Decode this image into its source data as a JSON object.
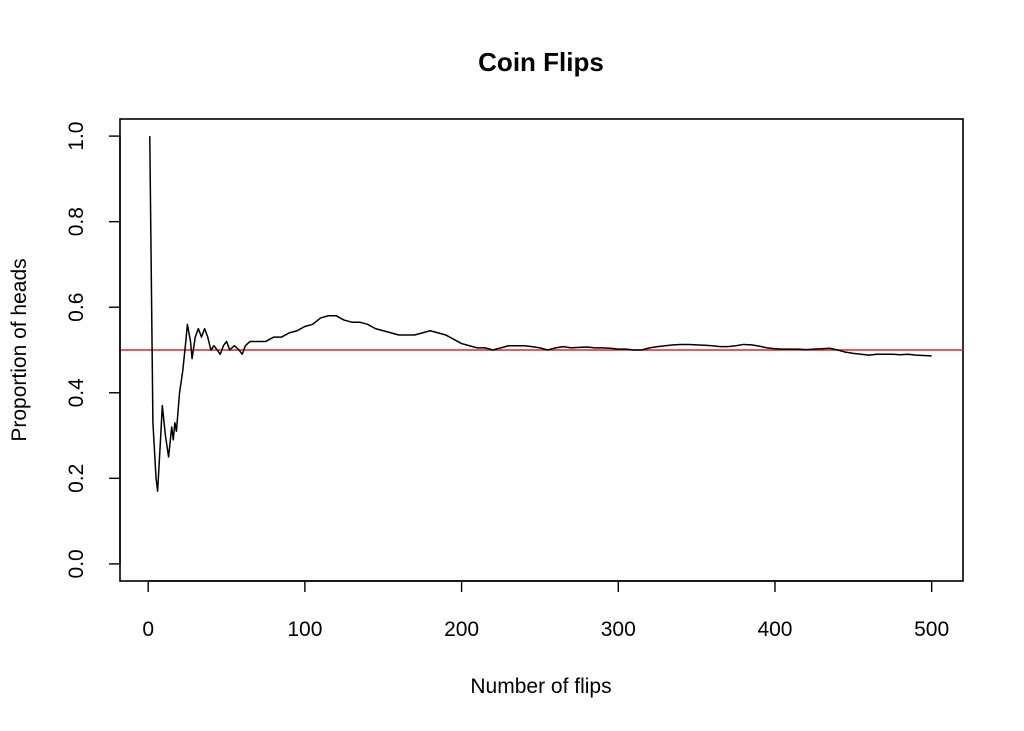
{
  "chart_data": {
    "type": "line",
    "title": "Coin Flips",
    "xlabel": "Number of flips",
    "ylabel": "Proportion of heads",
    "xlim": [
      -18,
      520
    ],
    "ylim": [
      -0.04,
      1.04
    ],
    "x_ticks": [
      "0",
      "100",
      "200",
      "300",
      "400",
      "500"
    ],
    "y_ticks": [
      "0.0",
      "0.2",
      "0.4",
      "0.6",
      "0.8",
      "1.0"
    ],
    "grid": false,
    "legend": "none",
    "series": [
      {
        "color": "#000000",
        "points": [
          [
            1,
            1.0
          ],
          [
            3,
            0.33
          ],
          [
            5,
            0.2
          ],
          [
            6,
            0.17
          ],
          [
            8,
            0.3
          ],
          [
            9,
            0.37
          ],
          [
            11,
            0.3
          ],
          [
            13,
            0.25
          ],
          [
            15,
            0.32
          ],
          [
            16,
            0.29
          ],
          [
            17,
            0.33
          ],
          [
            18,
            0.31
          ],
          [
            20,
            0.4
          ],
          [
            22,
            0.45
          ],
          [
            24,
            0.52
          ],
          [
            25,
            0.56
          ],
          [
            27,
            0.52
          ],
          [
            28,
            0.48
          ],
          [
            30,
            0.53
          ],
          [
            32,
            0.55
          ],
          [
            34,
            0.53
          ],
          [
            36,
            0.55
          ],
          [
            38,
            0.53
          ],
          [
            40,
            0.5
          ],
          [
            42,
            0.51
          ],
          [
            44,
            0.5
          ],
          [
            46,
            0.49
          ],
          [
            48,
            0.51
          ],
          [
            50,
            0.52
          ],
          [
            52,
            0.5
          ],
          [
            55,
            0.51
          ],
          [
            58,
            0.5
          ],
          [
            60,
            0.49
          ],
          [
            62,
            0.51
          ],
          [
            65,
            0.52
          ],
          [
            70,
            0.52
          ],
          [
            75,
            0.52
          ],
          [
            80,
            0.53
          ],
          [
            85,
            0.53
          ],
          [
            90,
            0.54
          ],
          [
            95,
            0.545
          ],
          [
            100,
            0.555
          ],
          [
            105,
            0.56
          ],
          [
            110,
            0.575
          ],
          [
            115,
            0.58
          ],
          [
            120,
            0.58
          ],
          [
            125,
            0.57
          ],
          [
            130,
            0.565
          ],
          [
            135,
            0.565
          ],
          [
            140,
            0.56
          ],
          [
            145,
            0.55
          ],
          [
            150,
            0.545
          ],
          [
            155,
            0.54
          ],
          [
            160,
            0.535
          ],
          [
            165,
            0.535
          ],
          [
            170,
            0.535
          ],
          [
            175,
            0.54
          ],
          [
            180,
            0.545
          ],
          [
            185,
            0.54
          ],
          [
            190,
            0.535
          ],
          [
            195,
            0.525
          ],
          [
            200,
            0.515
          ],
          [
            205,
            0.51
          ],
          [
            210,
            0.505
          ],
          [
            215,
            0.505
          ],
          [
            220,
            0.5
          ],
          [
            225,
            0.505
          ],
          [
            230,
            0.51
          ],
          [
            235,
            0.51
          ],
          [
            240,
            0.51
          ],
          [
            245,
            0.508
          ],
          [
            250,
            0.505
          ],
          [
            255,
            0.5
          ],
          [
            260,
            0.505
          ],
          [
            265,
            0.508
          ],
          [
            270,
            0.505
          ],
          [
            275,
            0.506
          ],
          [
            280,
            0.507
          ],
          [
            285,
            0.505
          ],
          [
            290,
            0.505
          ],
          [
            295,
            0.504
          ],
          [
            300,
            0.502
          ],
          [
            305,
            0.502
          ],
          [
            310,
            0.5
          ],
          [
            315,
            0.5
          ],
          [
            320,
            0.505
          ],
          [
            325,
            0.508
          ],
          [
            330,
            0.51
          ],
          [
            335,
            0.512
          ],
          [
            340,
            0.513
          ],
          [
            345,
            0.513
          ],
          [
            350,
            0.512
          ],
          [
            355,
            0.511
          ],
          [
            360,
            0.51
          ],
          [
            365,
            0.508
          ],
          [
            370,
            0.508
          ],
          [
            375,
            0.51
          ],
          [
            380,
            0.513
          ],
          [
            385,
            0.512
          ],
          [
            390,
            0.509
          ],
          [
            395,
            0.505
          ],
          [
            400,
            0.503
          ],
          [
            405,
            0.502
          ],
          [
            410,
            0.502
          ],
          [
            415,
            0.502
          ],
          [
            420,
            0.501
          ],
          [
            425,
            0.502
          ],
          [
            430,
            0.503
          ],
          [
            435,
            0.504
          ],
          [
            440,
            0.5
          ],
          [
            445,
            0.495
          ],
          [
            450,
            0.492
          ],
          [
            455,
            0.49
          ],
          [
            460,
            0.488
          ],
          [
            465,
            0.49
          ],
          [
            470,
            0.49
          ],
          [
            475,
            0.49
          ],
          [
            480,
            0.489
          ],
          [
            485,
            0.49
          ],
          [
            490,
            0.488
          ],
          [
            495,
            0.487
          ],
          [
            500,
            0.486
          ]
        ]
      }
    ],
    "reference_lines": [
      {
        "orientation": "horizontal",
        "y": 0.5,
        "color": "#e8202a"
      }
    ]
  }
}
